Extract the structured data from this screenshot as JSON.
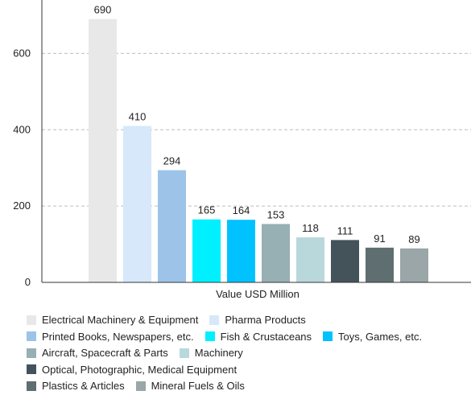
{
  "chart_data": {
    "type": "bar",
    "title": "",
    "xlabel": "Value USD Million",
    "ylabel": "",
    "ylim": [
      0,
      740
    ],
    "yticks": [
      0,
      200,
      400,
      600
    ],
    "grid": true,
    "legend_position": "bottom",
    "categories": [
      "Electrical Machinery & Equipment",
      "Pharma Products",
      "Printed Books, Newspapers, etc.",
      "Fish & Crustaceans",
      "Toys, Games, etc.",
      "Aircraft, Spacecraft & Parts",
      "Machinery",
      "Optical, Photographic, Medical Equipment",
      "Plastics & Articles",
      "Mineral Fuels & Oils"
    ],
    "values": [
      690,
      410,
      294,
      165,
      164,
      153,
      118,
      111,
      91,
      89
    ],
    "colors": [
      "#e8e8e8",
      "#d6e8fa",
      "#9dc3e8",
      "#00f0ff",
      "#00c2ff",
      "#96b0b4",
      "#b8d8dc",
      "#44535a",
      "#5f6e70",
      "#9aa6a8"
    ]
  },
  "legend_rows": [
    [
      0,
      1
    ],
    [
      2,
      3,
      4
    ],
    [
      5,
      6,
      7
    ],
    [
      8,
      9
    ]
  ]
}
